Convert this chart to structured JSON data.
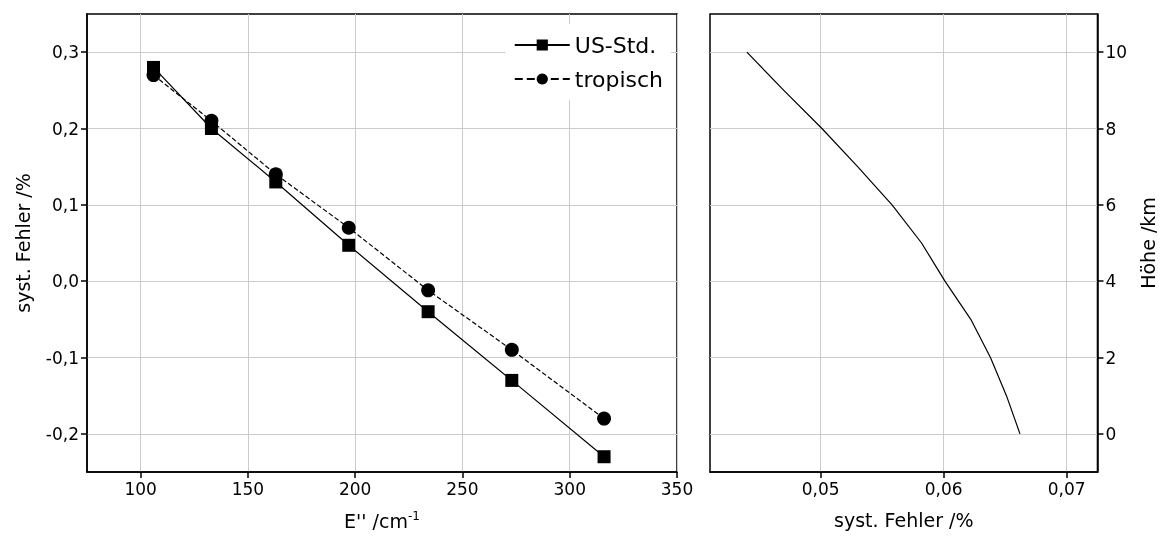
{
  "chart_data": [
    {
      "type": "line",
      "xlabel": "E'' /cm$^{-1}$",
      "ylabel": "syst. Fehler /%",
      "x": [
        106,
        133,
        163,
        197,
        234,
        273,
        316
      ],
      "series": [
        {
          "name": "US-Std.",
          "color": "#000000",
          "marker": "square",
          "line_style": "solid",
          "values": [
            0.28,
            0.2,
            0.13,
            0.047,
            -0.04,
            -0.13,
            -0.23
          ]
        },
        {
          "name": "tropisch",
          "color": "#000000",
          "marker": "circle",
          "line_style": "dashed",
          "values": [
            0.27,
            0.21,
            0.14,
            0.07,
            -0.012,
            -0.09,
            -0.18
          ]
        }
      ],
      "xlim": [
        75,
        350
      ],
      "xticks": [
        100,
        150,
        200,
        250,
        300,
        350
      ],
      "ylim": [
        -0.25,
        0.35
      ],
      "yticks": [
        {
          "value": -0.2,
          "label": "-0,2"
        },
        {
          "value": -0.1,
          "label": "-0,1"
        },
        {
          "value": 0,
          "label": "0,0"
        },
        {
          "value": 0.1,
          "label": "0,1"
        },
        {
          "value": 0.2,
          "label": "0,2"
        },
        {
          "value": 0.3,
          "label": "0,3"
        }
      ],
      "grid": true,
      "legend": "top right"
    },
    {
      "type": "line",
      "xlabel": "syst. Fehler /%",
      "y2label": "Höhe /km",
      "marker": "none",
      "line_style": "solid",
      "series": [
        {
          "color": "#000000",
          "axis": "y2",
          "x": [
            0.044,
            0.047,
            0.0501,
            0.053,
            0.0558,
            0.0582,
            0.0601,
            0.0622,
            0.0638,
            0.0651,
            0.0662
          ],
          "values": [
            10,
            9,
            8,
            7,
            6,
            5,
            4,
            3,
            2,
            1,
            0
          ]
        }
      ],
      "xlim": [
        0.041,
        0.0725
      ],
      "xticks": [
        {
          "value": 0.05,
          "label": "0,05"
        },
        {
          "value": 0.06,
          "label": "0,06"
        },
        {
          "value": 0.07,
          "label": "0,07"
        }
      ],
      "y2lim": [
        -1,
        11
      ],
      "y2ticks": [
        0,
        2,
        4,
        6,
        8,
        10
      ],
      "grid": true,
      "legend": false
    }
  ]
}
